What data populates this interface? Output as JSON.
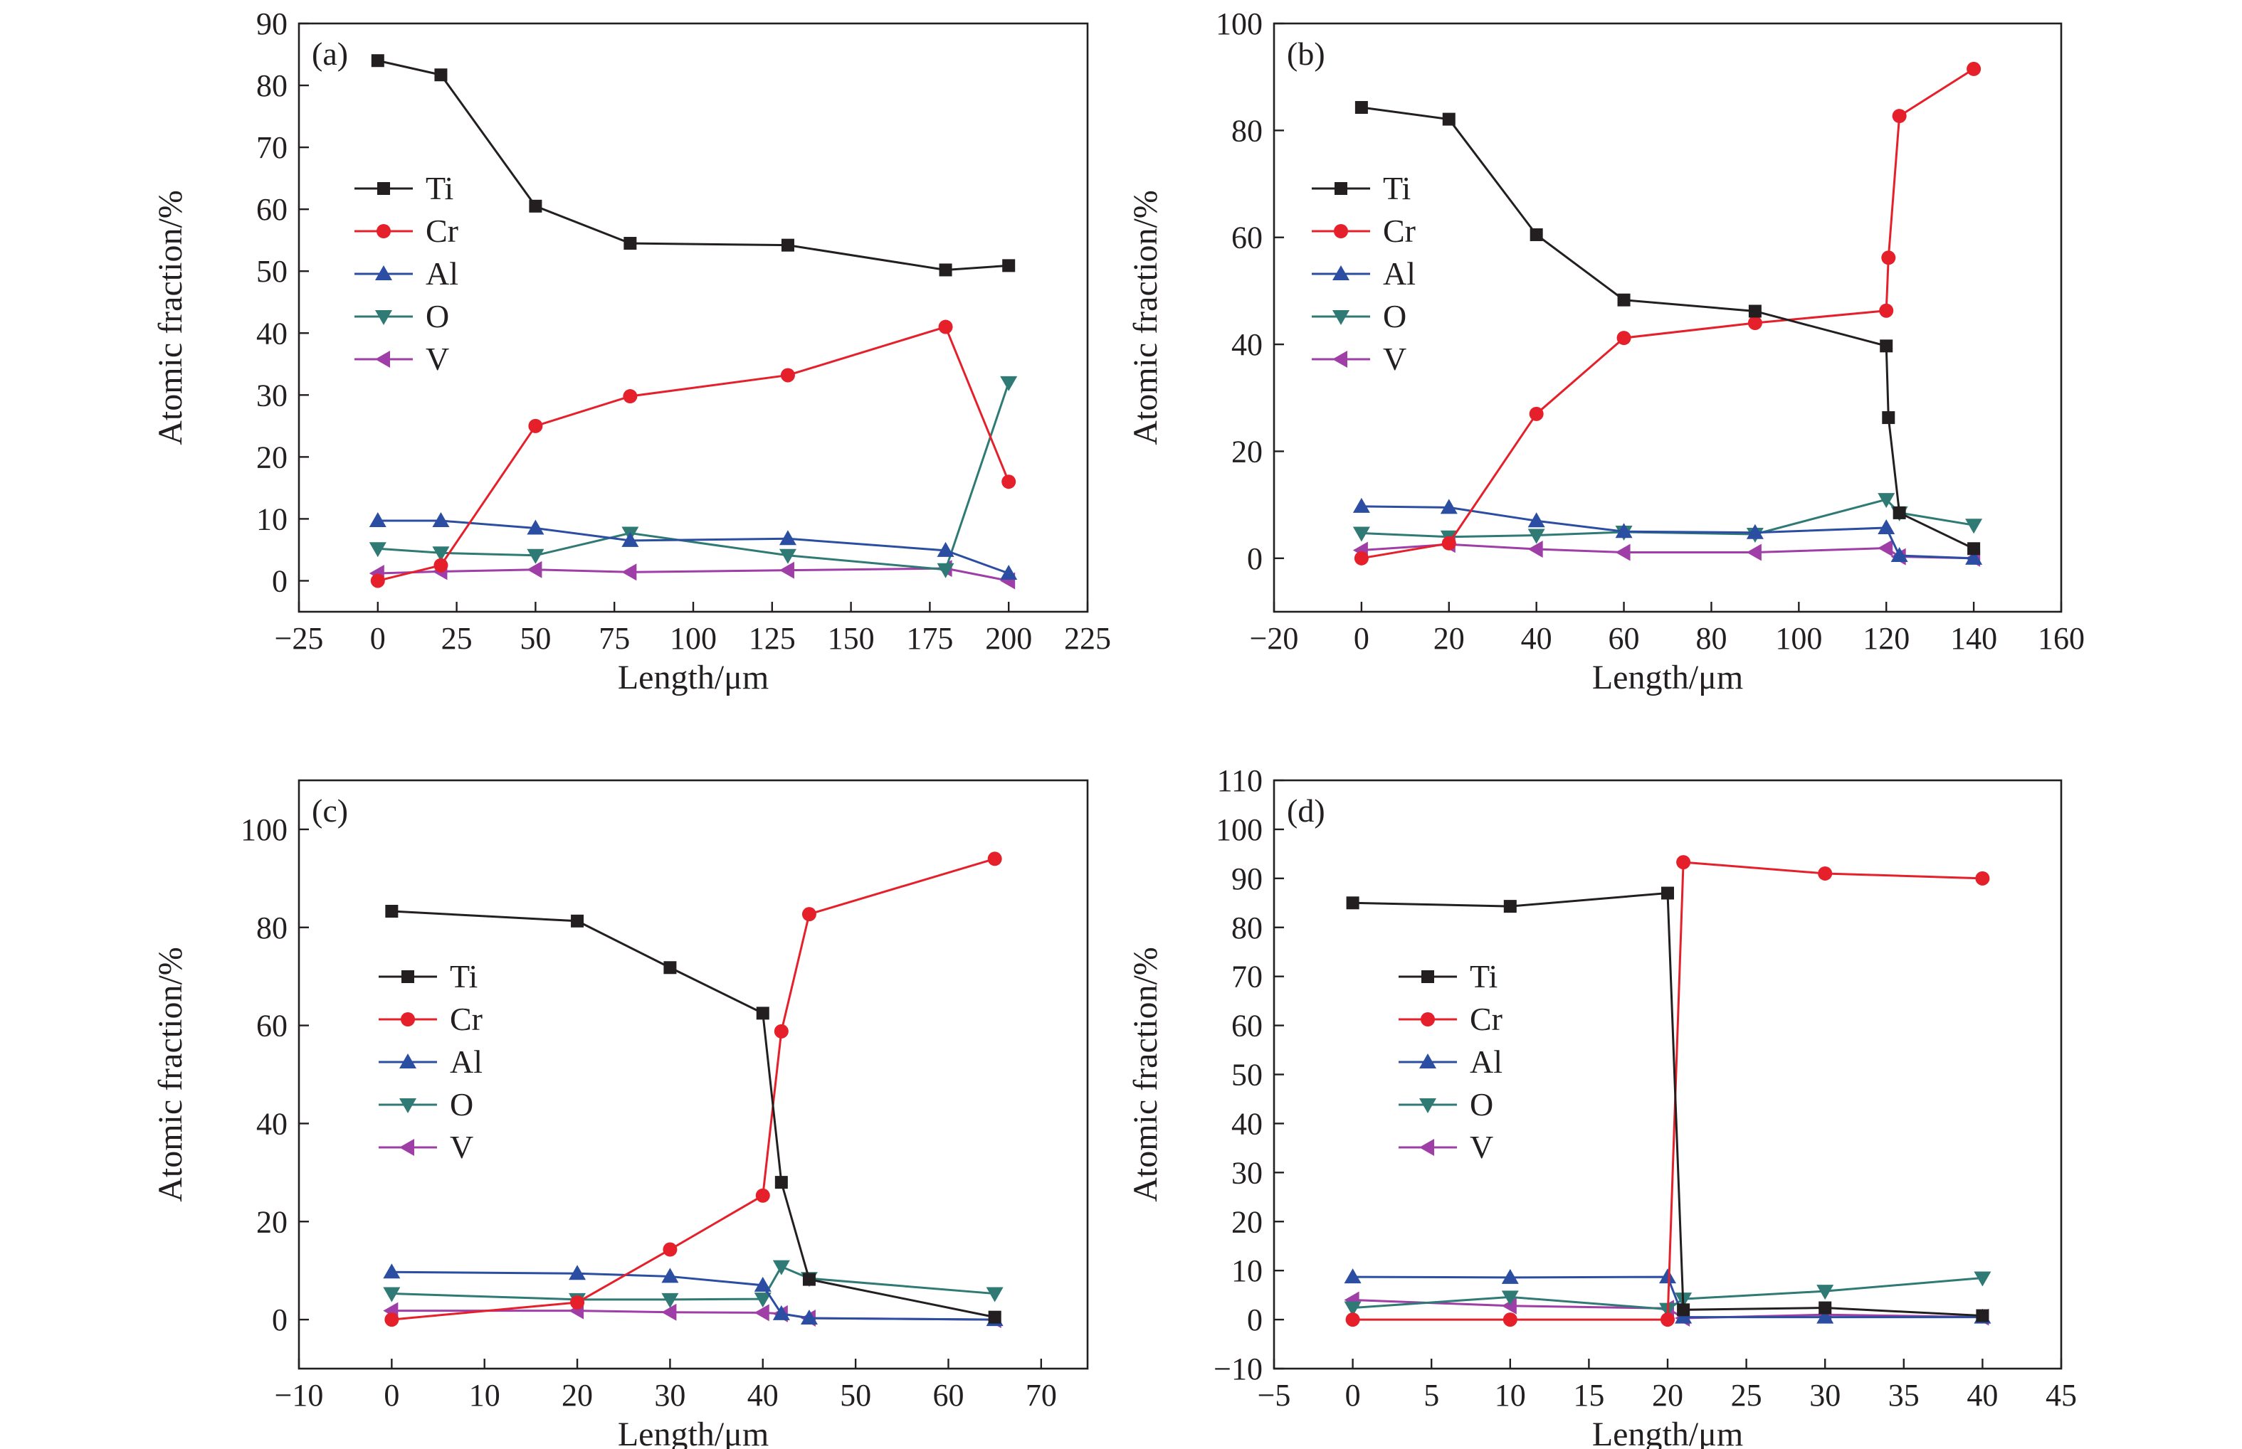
{
  "colors": {
    "Ti": "#231f20",
    "Cr": "#e5202a",
    "Al": "#2b4ea2",
    "O": "#2f7a74",
    "V": "#9e3ea6"
  },
  "markers": {
    "Ti": "square",
    "Cr": "circle",
    "Al": "triangle-up",
    "O": "triangle-down",
    "V": "triangle-left"
  },
  "chart_data": [
    {
      "type": "line",
      "panel_label": "(a)",
      "xlabel": "Length/μm",
      "ylabel": "Atomic fraction/%",
      "xlim": [
        -25,
        225
      ],
      "ylim": [
        -5,
        90
      ],
      "xticks": [
        -25,
        0,
        25,
        50,
        75,
        100,
        125,
        150,
        175,
        200,
        225
      ],
      "yticks": [
        0,
        10,
        20,
        30,
        40,
        50,
        60,
        70,
        80,
        90
      ],
      "xtick_labels": [
        "−25",
        "0",
        "25",
        "50",
        "75",
        "100",
        "125",
        "150",
        "175",
        "200",
        "225"
      ],
      "ytick_labels": [
        "0",
        "10",
        "20",
        "30",
        "40",
        "50",
        "60",
        "70",
        "80",
        "90"
      ],
      "legend": "upper-left",
      "series": [
        {
          "name": "Ti",
          "x": [
            0,
            20,
            50,
            80,
            130,
            180,
            200
          ],
          "y": [
            84,
            81.7,
            60.5,
            54.5,
            54.2,
            50.2,
            50.9
          ]
        },
        {
          "name": "Cr",
          "x": [
            0,
            20,
            50,
            80,
            130,
            180,
            200
          ],
          "y": [
            0,
            2.5,
            25,
            29.8,
            33.2,
            41,
            16
          ]
        },
        {
          "name": "Al",
          "x": [
            0,
            20,
            50,
            80,
            130,
            180,
            200
          ],
          "y": [
            9.7,
            9.7,
            8.5,
            6.5,
            6.8,
            4.9,
            1.2
          ]
        },
        {
          "name": "O",
          "x": [
            0,
            20,
            50,
            80,
            130,
            180,
            200
          ],
          "y": [
            5.2,
            4.5,
            4.1,
            7.7,
            4.1,
            1.8,
            32
          ]
        },
        {
          "name": "V",
          "x": [
            0,
            20,
            50,
            80,
            130,
            180,
            200
          ],
          "y": [
            1.2,
            1.5,
            1.8,
            1.4,
            1.7,
            2,
            0
          ]
        }
      ]
    },
    {
      "type": "line",
      "panel_label": "(b)",
      "xlabel": "Length/μm",
      "ylabel": "Atomic fraction/%",
      "xlim": [
        -20,
        160
      ],
      "ylim": [
        -10,
        100
      ],
      "xticks": [
        -20,
        0,
        20,
        40,
        60,
        80,
        100,
        120,
        140,
        160
      ],
      "yticks": [
        0,
        20,
        40,
        60,
        80,
        100
      ],
      "xtick_labels": [
        "−20",
        "0",
        "20",
        "40",
        "60",
        "80",
        "100",
        "120",
        "140",
        "160"
      ],
      "ytick_labels": [
        "0",
        "20",
        "40",
        "60",
        "80",
        "100"
      ],
      "legend": "upper-left",
      "series": [
        {
          "name": "Ti",
          "x": [
            0,
            20,
            40,
            60,
            90,
            120,
            120.5,
            123,
            140
          ],
          "y": [
            84.3,
            82.1,
            60.5,
            48.3,
            46.2,
            39.7,
            26.3,
            8.5,
            1.8
          ]
        },
        {
          "name": "Cr",
          "x": [
            0,
            20,
            40,
            60,
            90,
            120,
            120.5,
            123,
            140
          ],
          "y": [
            0,
            2.8,
            27,
            41.2,
            44,
            46.3,
            56.2,
            82.7,
            91.5
          ]
        },
        {
          "name": "Al",
          "x": [
            0,
            20,
            40,
            60,
            90,
            120,
            123,
            140
          ],
          "y": [
            9.7,
            9.5,
            7,
            5,
            4.8,
            5.7,
            0.5,
            0
          ]
        },
        {
          "name": "O",
          "x": [
            0,
            20,
            40,
            60,
            90,
            120,
            123,
            140
          ],
          "y": [
            4.7,
            4,
            4.3,
            4.9,
            4.5,
            11,
            8.5,
            6.2
          ]
        },
        {
          "name": "V",
          "x": [
            0,
            20,
            40,
            60,
            90,
            120,
            123,
            140
          ],
          "y": [
            1.5,
            2.6,
            1.7,
            1.1,
            1.1,
            1.9,
            0.3,
            0
          ]
        }
      ]
    },
    {
      "type": "line",
      "panel_label": "(c)",
      "xlabel": "Length/μm",
      "ylabel": "Atomic fraction/%",
      "xlim": [
        -10,
        75
      ],
      "ylim": [
        -10,
        110
      ],
      "xticks": [
        -10,
        0,
        10,
        20,
        30,
        40,
        50,
        60,
        70
      ],
      "yticks": [
        0,
        20,
        40,
        60,
        80,
        100
      ],
      "xtick_labels": [
        "−10",
        "0",
        "10",
        "20",
        "30",
        "40",
        "50",
        "60",
        "70"
      ],
      "ytick_labels": [
        "0",
        "20",
        "40",
        "60",
        "80",
        "100"
      ],
      "legend": "center-left",
      "series": [
        {
          "name": "Ti",
          "x": [
            0,
            20,
            30,
            40,
            42,
            45,
            65
          ],
          "y": [
            83.3,
            81.3,
            71.8,
            62.5,
            28,
            8.2,
            0.5
          ]
        },
        {
          "name": "Cr",
          "x": [
            0,
            20,
            30,
            40,
            42,
            45,
            65
          ],
          "y": [
            0,
            3.5,
            14.3,
            25.3,
            58.8,
            82.7,
            94
          ]
        },
        {
          "name": "Al",
          "x": [
            0,
            20,
            30,
            40,
            42,
            45,
            65
          ],
          "y": [
            9.7,
            9.4,
            8.8,
            7,
            1.2,
            0.3,
            0
          ]
        },
        {
          "name": "O",
          "x": [
            0,
            20,
            30,
            40,
            42,
            45,
            65
          ],
          "y": [
            5.3,
            4.1,
            4.1,
            4.2,
            10.8,
            8.4,
            5.3
          ]
        },
        {
          "name": "V",
          "x": [
            0,
            20,
            30,
            40,
            42,
            45,
            65
          ],
          "y": [
            1.8,
            1.8,
            1.5,
            1.4,
            1.2,
            0.3,
            0
          ]
        }
      ]
    },
    {
      "type": "line",
      "panel_label": "(d)",
      "xlabel": "Length/μm",
      "ylabel": "Atomic fraction/%",
      "xlim": [
        -5,
        45
      ],
      "ylim": [
        -10,
        110
      ],
      "xticks": [
        -5,
        0,
        5,
        10,
        15,
        20,
        25,
        30,
        35,
        40,
        45
      ],
      "yticks": [
        -10,
        0,
        10,
        20,
        30,
        40,
        50,
        60,
        70,
        80,
        90,
        100,
        110
      ],
      "xtick_labels": [
        "−5",
        "0",
        "5",
        "10",
        "15",
        "20",
        "25",
        "30",
        "35",
        "40",
        "45"
      ],
      "ytick_labels": [
        "−10",
        "0",
        "10",
        "20",
        "30",
        "40",
        "50",
        "60",
        "70",
        "80",
        "90",
        "100",
        "110"
      ],
      "legend": "center-left",
      "series": [
        {
          "name": "Ti",
          "x": [
            0,
            10,
            20,
            21,
            30,
            40
          ],
          "y": [
            85,
            84.3,
            87,
            2,
            2.4,
            0.8
          ]
        },
        {
          "name": "Cr",
          "x": [
            0,
            10,
            20,
            21,
            30,
            40
          ],
          "y": [
            0,
            0,
            0,
            93.3,
            91,
            90
          ]
        },
        {
          "name": "Al",
          "x": [
            0,
            10,
            20,
            21,
            30,
            40
          ],
          "y": [
            8.7,
            8.6,
            8.7,
            0.5,
            0.5,
            0.5
          ]
        },
        {
          "name": "O",
          "x": [
            0,
            10,
            20,
            21,
            30,
            40
          ],
          "y": [
            2.4,
            4.6,
            2.1,
            4.2,
            5.8,
            8.5
          ]
        },
        {
          "name": "V",
          "x": [
            0,
            10,
            20,
            21,
            30,
            40
          ],
          "y": [
            4,
            2.8,
            2.3,
            0.3,
            1,
            0.5
          ]
        }
      ]
    }
  ]
}
